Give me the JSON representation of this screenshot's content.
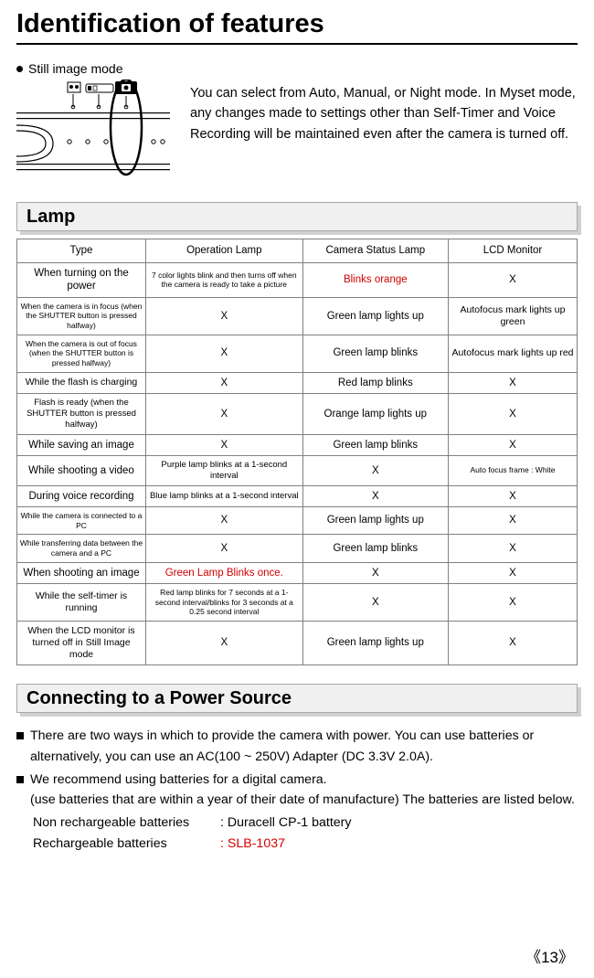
{
  "title": "Identification of features",
  "still_image_mode_label": "Still image mode",
  "intro_paragraph": "You can select from Auto, Manual, or Night mode. In Myset mode, any changes made to settings other than Self-Timer and Voice Recording will be maintained even after the camera is turned off.",
  "sections": {
    "lamp_title": "Lamp",
    "power_title": "Connecting to a Power Source"
  },
  "table": {
    "headers": [
      "Type",
      "Operation Lamp",
      "Camera Status Lamp",
      "LCD Monitor"
    ],
    "rows": [
      {
        "c0": {
          "text": "When turning on the power",
          "cls": "fs12"
        },
        "c1": {
          "text": "7 color lights blink and then turns off when the camera is ready to take a picture",
          "cls": "fs9"
        },
        "c2": {
          "text": "Blinks orange",
          "cls": "fs12 red"
        },
        "c3": {
          "text": "X",
          "cls": "fs12"
        }
      },
      {
        "c0": {
          "text": "When the camera is in focus (when the SHUTTER button is pressed halfway)",
          "cls": "fs9"
        },
        "c1": {
          "text": "X",
          "cls": "fs12"
        },
        "c2": {
          "text": "Green lamp lights up",
          "cls": "fs12"
        },
        "c3": {
          "text": "Autofocus mark lights up green",
          "cls": "fs11"
        }
      },
      {
        "c0": {
          "text": "When the camera is out of focus (when the SHUTTER button is pressed halfway)",
          "cls": "fs9"
        },
        "c1": {
          "text": "X",
          "cls": "fs12"
        },
        "c2": {
          "text": "Green lamp blinks",
          "cls": "fs12"
        },
        "c3": {
          "text": "Autofocus mark lights up red",
          "cls": "fs11"
        }
      },
      {
        "c0": {
          "text": "While the flash is charging",
          "cls": "fs11"
        },
        "c1": {
          "text": "X",
          "cls": "fs12"
        },
        "c2": {
          "text": "Red lamp blinks",
          "cls": "fs12"
        },
        "c3": {
          "text": "X",
          "cls": "fs12"
        }
      },
      {
        "c0": {
          "text": "Flash is ready (when the SHUTTER button is pressed halfway)",
          "cls": "fs10"
        },
        "c1": {
          "text": "X",
          "cls": "fs12"
        },
        "c2": {
          "text": "Orange lamp lights up",
          "cls": "fs12"
        },
        "c3": {
          "text": "X",
          "cls": "fs12"
        }
      },
      {
        "c0": {
          "text": "While saving an image",
          "cls": "fs12"
        },
        "c1": {
          "text": "X",
          "cls": "fs12"
        },
        "c2": {
          "text": "Green lamp blinks",
          "cls": "fs12"
        },
        "c3": {
          "text": "X",
          "cls": "fs12"
        }
      },
      {
        "c0": {
          "text": "While shooting a video",
          "cls": "fs12"
        },
        "c1": {
          "text": "Purple lamp blinks at a 1-second interval",
          "cls": "fs10"
        },
        "c2": {
          "text": "X",
          "cls": "fs12"
        },
        "c3": {
          "text": "Auto focus frame : White",
          "cls": "fs9"
        }
      },
      {
        "c0": {
          "text": "During voice recording",
          "cls": "fs12"
        },
        "c1": {
          "text": "Blue lamp blinks at a 1-second interval",
          "cls": "fs10"
        },
        "c2": {
          "text": "X",
          "cls": "fs12"
        },
        "c3": {
          "text": "X",
          "cls": "fs12"
        }
      },
      {
        "c0": {
          "text": "While the camera is connected to a PC",
          "cls": "fs9"
        },
        "c1": {
          "text": "X",
          "cls": "fs12"
        },
        "c2": {
          "text": "Green lamp lights up",
          "cls": "fs12"
        },
        "c3": {
          "text": "X",
          "cls": "fs12"
        }
      },
      {
        "c0": {
          "text": "While transferring data between the camera and a PC",
          "cls": "fs9"
        },
        "c1": {
          "text": "X",
          "cls": "fs12"
        },
        "c2": {
          "text": "Green lamp blinks",
          "cls": "fs12"
        },
        "c3": {
          "text": "X",
          "cls": "fs12"
        }
      },
      {
        "c0": {
          "text": "When shooting an image",
          "cls": "fs12"
        },
        "c1": {
          "text": "Green Lamp Blinks once.",
          "cls": "fs12 red"
        },
        "c2": {
          "text": "X",
          "cls": "fs12"
        },
        "c3": {
          "text": "X",
          "cls": "fs12"
        }
      },
      {
        "c0": {
          "text": "While the self-timer is running",
          "cls": "fs11"
        },
        "c1": {
          "text": "Red lamp blinks for 7 seconds at a 1-second interval/blinks for 3 seconds at a 0.25 second interval",
          "cls": "fs9"
        },
        "c2": {
          "text": "X",
          "cls": "fs12"
        },
        "c3": {
          "text": "X",
          "cls": "fs12"
        }
      },
      {
        "c0": {
          "text": "When the LCD monitor is turned off in Still Image mode",
          "cls": "fs11"
        },
        "c1": {
          "text": "X",
          "cls": "fs12"
        },
        "c2": {
          "text": "Green lamp lights up",
          "cls": "fs12"
        },
        "c3": {
          "text": "X",
          "cls": "fs12"
        }
      }
    ]
  },
  "power": {
    "p1": "There are two ways in which to provide the camera with power. You can use batteries or alternatively, you can use an AC(100 ~ 250V) Adapter (DC 3.3V 2.0A).",
    "p2_a": "We recommend using batteries for a digital camera.",
    "p2_b": "(use batteries that are within a year of their date of manufacture) The batteries are listed below.",
    "non_recharge_label": "Non rechargeable batteries",
    "non_recharge_value": ": Duracell CP-1 battery",
    "recharge_label": "Rechargeable batteries",
    "recharge_value": ": SLB-1037"
  },
  "page_number": "13",
  "colors": {
    "red": "#d20000",
    "section_bg": "#f0f0f0",
    "section_shadow": "#d0d0d0",
    "border_gray": "#808080"
  }
}
